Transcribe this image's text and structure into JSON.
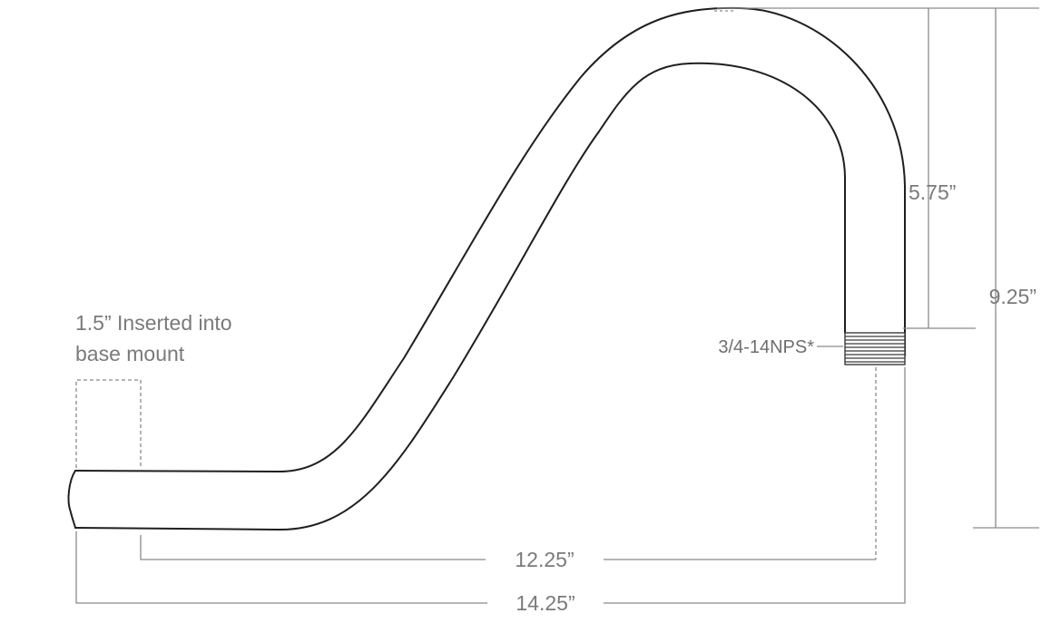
{
  "labels": {
    "insert_note_line1": "1.5” Inserted into",
    "insert_note_line2": "base mount",
    "thread_spec": "3/4-14NPS*",
    "dim_drop": "5.75”",
    "dim_height": "9.25”",
    "dim_reach_inner": "12.25”",
    "dim_reach_total": "14.25”"
  },
  "colors": {
    "outline": "#1f1f1f",
    "dimension": "#8a8a8a",
    "label_text": "#7a7a7a"
  }
}
